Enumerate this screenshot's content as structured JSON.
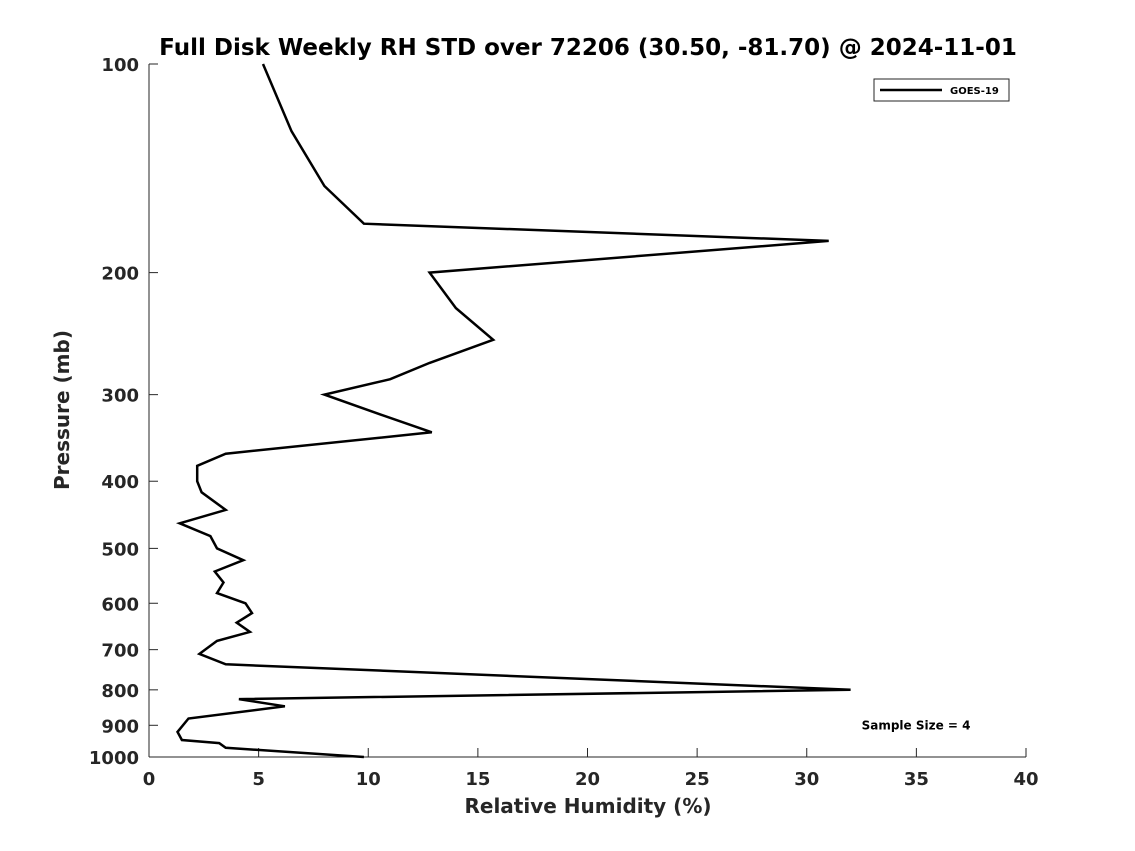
{
  "chart_data": {
    "type": "line",
    "title": "Full Disk Weekly RH STD over 72206 (30.50, -81.70) @ 2024-11-01",
    "xlabel": "Relative Humidity (%)",
    "ylabel": "Pressure (mb)",
    "xlim": [
      0,
      40
    ],
    "ylim": [
      100,
      1000
    ],
    "y_scale": "log",
    "y_reversed": true,
    "x_ticks": [
      0,
      5,
      10,
      15,
      20,
      25,
      30,
      35,
      40
    ],
    "y_ticks": [
      100,
      200,
      300,
      400,
      500,
      600,
      700,
      800,
      900,
      1000
    ],
    "grid": false,
    "legend_position": "top-right",
    "series": [
      {
        "name": "GOES-19",
        "color": "#000000",
        "points": [
          [
            5.2,
            100
          ],
          [
            6.5,
            125
          ],
          [
            8.0,
            150
          ],
          [
            9.8,
            170
          ],
          [
            31.0,
            180
          ],
          [
            12.8,
            200
          ],
          [
            14.0,
            225
          ],
          [
            15.7,
            250
          ],
          [
            12.8,
            270
          ],
          [
            11.0,
            285
          ],
          [
            8.0,
            300
          ],
          [
            10.5,
            320
          ],
          [
            12.9,
            340
          ],
          [
            3.5,
            365
          ],
          [
            2.2,
            380
          ],
          [
            2.2,
            400
          ],
          [
            2.4,
            415
          ],
          [
            3.5,
            440
          ],
          [
            1.4,
            460
          ],
          [
            2.8,
            480
          ],
          [
            3.1,
            500
          ],
          [
            4.3,
            520
          ],
          [
            3.0,
            540
          ],
          [
            3.4,
            560
          ],
          [
            3.1,
            580
          ],
          [
            4.4,
            600
          ],
          [
            4.7,
            620
          ],
          [
            4.0,
            640
          ],
          [
            4.6,
            660
          ],
          [
            3.1,
            680
          ],
          [
            2.3,
            710
          ],
          [
            3.5,
            735
          ],
          [
            32.0,
            800
          ],
          [
            4.1,
            825
          ],
          [
            6.2,
            845
          ],
          [
            1.8,
            880
          ],
          [
            1.3,
            920
          ],
          [
            1.5,
            945
          ],
          [
            3.2,
            955
          ],
          [
            3.5,
            970
          ],
          [
            9.8,
            1000
          ]
        ]
      }
    ],
    "annotations": [
      {
        "text": "Sample Size = 4",
        "x": 32.5,
        "y": 900
      }
    ]
  }
}
